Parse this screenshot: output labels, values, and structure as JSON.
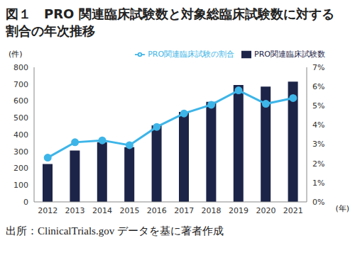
{
  "chart_data": {
    "type": "bar",
    "title": "図１　PRO 関連臨床試験数と対象総臨床試験数に対する割合の年次推移",
    "source": "出所：ClinicalTrials.gov データを基に著者作成",
    "x_label": "(年)",
    "y_label": "(件)",
    "categories": [
      "2012",
      "2013",
      "2014",
      "2015",
      "2016",
      "2017",
      "2018",
      "2019",
      "2020",
      "2021"
    ],
    "series": [
      {
        "name": "PRO関連臨床試験数",
        "type": "bar",
        "color": "#1c2448",
        "values": [
          225,
          305,
          355,
          325,
          455,
          535,
          595,
          695,
          685,
          715
        ]
      },
      {
        "name": "PRO関連臨床試験の割合",
        "type": "line",
        "color": "#3db5e8",
        "marker": "circle",
        "axis": "y2",
        "values": [
          2.3,
          3.1,
          3.2,
          2.95,
          3.9,
          4.6,
          5.05,
          5.8,
          5.1,
          5.4
        ]
      }
    ],
    "ylim": [
      0,
      800
    ],
    "yticks": [
      0,
      100,
      200,
      300,
      400,
      500,
      600,
      700,
      800
    ],
    "y2lim": [
      0,
      7
    ],
    "y2ticks": [
      {
        "value": 0,
        "label": "0%"
      },
      {
        "value": 1,
        "label": "1%"
      },
      {
        "value": 2,
        "label": "2%"
      },
      {
        "value": 3,
        "label": "3%"
      },
      {
        "value": 4,
        "label": "4%"
      },
      {
        "value": 5,
        "label": "5%"
      },
      {
        "value": 6,
        "label": "6%"
      },
      {
        "value": 7,
        "label": "7%"
      }
    ],
    "grid": false,
    "legend": "top right"
  }
}
